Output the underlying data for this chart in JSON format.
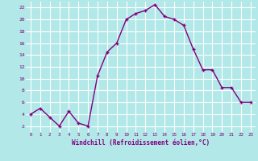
{
  "x": [
    0,
    1,
    2,
    3,
    4,
    5,
    6,
    7,
    8,
    9,
    10,
    11,
    12,
    13,
    14,
    15,
    16,
    17,
    18,
    19,
    20,
    21,
    22,
    23
  ],
  "y": [
    4,
    5,
    3.5,
    2,
    4.5,
    2.5,
    2,
    10.5,
    14.5,
    16,
    20,
    21,
    21.5,
    22.5,
    20.5,
    20,
    19,
    15,
    11.5,
    11.5,
    8.5,
    8.5,
    6,
    6
  ],
  "line_color": "#800080",
  "marker_color": "#800080",
  "bg_color": "#b2e8e8",
  "grid_color": "#ffffff",
  "xlabel": "Windchill (Refroidissement éolien,°C)",
  "xlabel_color": "#800080",
  "tick_color": "#800080",
  "ylim": [
    1,
    23
  ],
  "xlim": [
    -0.5,
    23.5
  ],
  "yticks": [
    2,
    4,
    6,
    8,
    10,
    12,
    14,
    16,
    18,
    20,
    22
  ],
  "xticks": [
    0,
    1,
    2,
    3,
    4,
    5,
    6,
    7,
    8,
    9,
    10,
    11,
    12,
    13,
    14,
    15,
    16,
    17,
    18,
    19,
    20,
    21,
    22,
    23
  ]
}
